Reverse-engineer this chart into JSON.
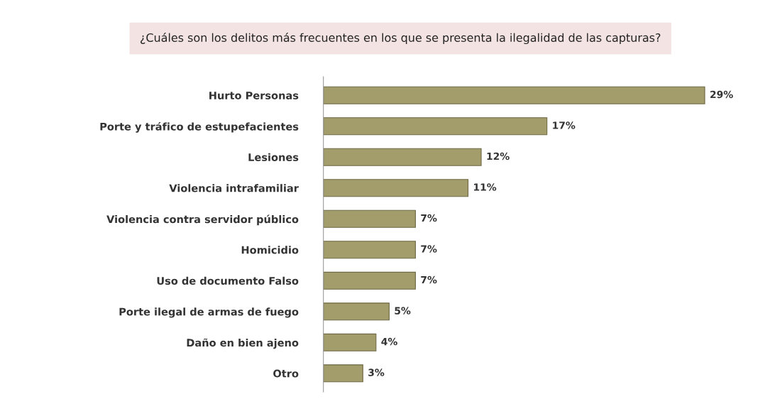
{
  "chart_data": {
    "type": "bar",
    "orientation": "horizontal",
    "title": "¿Cuáles son los delitos más frecuentes en los que se presenta la ilegalidad de las capturas?",
    "categories": [
      "Hurto Personas",
      "Porte y tráfico de estupefacientes",
      "Lesiones",
      "Violencia intrafamiliar",
      "Violencia contra servidor público",
      "Homicidio",
      "Uso de documento Falso",
      "Porte ilegal de armas de fuego",
      "Daño en bien ajeno",
      "Otro"
    ],
    "values": [
      29,
      17,
      12,
      11,
      7,
      7,
      7,
      5,
      4,
      3
    ],
    "value_labels": [
      "29%",
      "17%",
      "12%",
      "11%",
      "7%",
      "7%",
      "7%",
      "5%",
      "4%",
      "3%"
    ],
    "color": "#a39c6b",
    "grid": false,
    "legend": false
  }
}
